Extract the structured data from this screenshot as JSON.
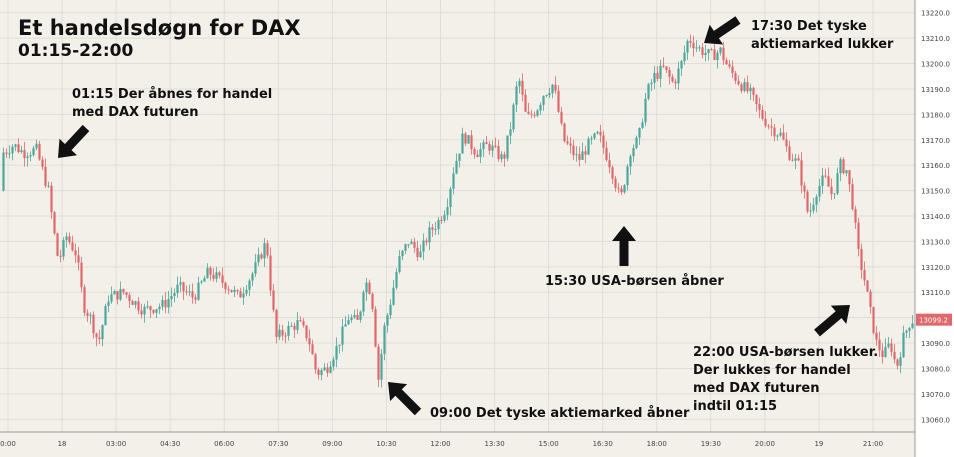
{
  "chart_data": {
    "type": "candlestick",
    "title": "Et handelsdøgn for DAX",
    "subtitle": "01:15-22:00",
    "ylim": [
      13055,
      13225
    ],
    "y_ticks": [
      13060,
      13070,
      13080,
      13090,
      13100,
      13110,
      13120,
      13130,
      13140,
      13150,
      13160,
      13170,
      13180,
      13190,
      13200,
      13210,
      13220
    ],
    "last_price_label": "13099.2",
    "x_ticks": [
      "0:00",
      "18",
      "03:00",
      "04:30",
      "06:00",
      "07:30",
      "09:00",
      "10:30",
      "12:00",
      "13:30",
      "15:00",
      "16:30",
      "18:00",
      "19:30",
      "20:00",
      "19",
      "21:00"
    ],
    "grid": true,
    "colors": {
      "up": "#4ca69a",
      "down": "#e0676a",
      "background": "#f3f0ea",
      "grid": "#e0ddd6",
      "price_tag": "#e0676a"
    },
    "close_path": [
      [
        0,
        13140
      ],
      [
        5,
        13165
      ],
      [
        15,
        13168
      ],
      [
        25,
        13165
      ],
      [
        38,
        13166
      ],
      [
        50,
        13150
      ],
      [
        55,
        13135
      ],
      [
        60,
        13122
      ],
      [
        68,
        13132
      ],
      [
        78,
        13125
      ],
      [
        85,
        13105
      ],
      [
        92,
        13100
      ],
      [
        100,
        13090
      ],
      [
        110,
        13108
      ],
      [
        125,
        13110
      ],
      [
        145,
        13103
      ],
      [
        165,
        13105
      ],
      [
        180,
        13112
      ],
      [
        195,
        13108
      ],
      [
        210,
        13118
      ],
      [
        228,
        13113
      ],
      [
        240,
        13108
      ],
      [
        255,
        13118
      ],
      [
        268,
        13130
      ],
      [
        273,
        13108
      ],
      [
        278,
        13092
      ],
      [
        288,
        13095
      ],
      [
        300,
        13098
      ],
      [
        310,
        13092
      ],
      [
        318,
        13078
      ],
      [
        328,
        13080
      ],
      [
        338,
        13088
      ],
      [
        350,
        13100
      ],
      [
        360,
        13098
      ],
      [
        366,
        13115
      ],
      [
        373,
        13110
      ],
      [
        380,
        13076
      ],
      [
        386,
        13096
      ],
      [
        393,
        13108
      ],
      [
        400,
        13122
      ],
      [
        410,
        13130
      ],
      [
        422,
        13125
      ],
      [
        430,
        13133
      ],
      [
        440,
        13138
      ],
      [
        448,
        13144
      ],
      [
        455,
        13158
      ],
      [
        465,
        13172
      ],
      [
        478,
        13165
      ],
      [
        490,
        13168
      ],
      [
        505,
        13162
      ],
      [
        512,
        13175
      ],
      [
        520,
        13195
      ],
      [
        528,
        13178
      ],
      [
        538,
        13182
      ],
      [
        545,
        13188
      ],
      [
        555,
        13192
      ],
      [
        565,
        13170
      ],
      [
        580,
        13162
      ],
      [
        590,
        13168
      ],
      [
        600,
        13172
      ],
      [
        612,
        13160
      ],
      [
        622,
        13146
      ],
      [
        632,
        13166
      ],
      [
        640,
        13170
      ],
      [
        648,
        13188
      ],
      [
        656,
        13195
      ],
      [
        665,
        13198
      ],
      [
        675,
        13192
      ],
      [
        683,
        13200
      ],
      [
        690,
        13210
      ],
      [
        700,
        13206
      ],
      [
        712,
        13203
      ],
      [
        722,
        13205
      ],
      [
        730,
        13198
      ],
      [
        742,
        13192
      ],
      [
        752,
        13188
      ],
      [
        762,
        13180
      ],
      [
        772,
        13175
      ],
      [
        782,
        13172
      ],
      [
        790,
        13165
      ],
      [
        800,
        13160
      ],
      [
        810,
        13140
      ],
      [
        818,
        13150
      ],
      [
        826,
        13155
      ],
      [
        834,
        13148
      ],
      [
        842,
        13160
      ],
      [
        848,
        13158
      ],
      [
        854,
        13145
      ],
      [
        860,
        13125
      ],
      [
        866,
        13115
      ],
      [
        872,
        13102
      ],
      [
        878,
        13090
      ],
      [
        885,
        13085
      ],
      [
        892,
        13090
      ],
      [
        898,
        13080
      ],
      [
        905,
        13092
      ],
      [
        912,
        13099
      ]
    ]
  },
  "annotations": {
    "open": [
      "01:15  Der åbnes for handel",
      "med DAX futuren"
    ],
    "xetra_close": [
      "17:30  Det tyske",
      "aktiemarked lukker"
    ],
    "us_open": [
      "15:30  USA-børsen åbner"
    ],
    "xetra_open": [
      "09:00  Det tyske aktiemarked åbner"
    ],
    "us_close": [
      "22:00   USA-børsen lukker.",
      "Der lukkes for handel",
      "med DAX futuren",
      "indtil 01:15"
    ]
  }
}
